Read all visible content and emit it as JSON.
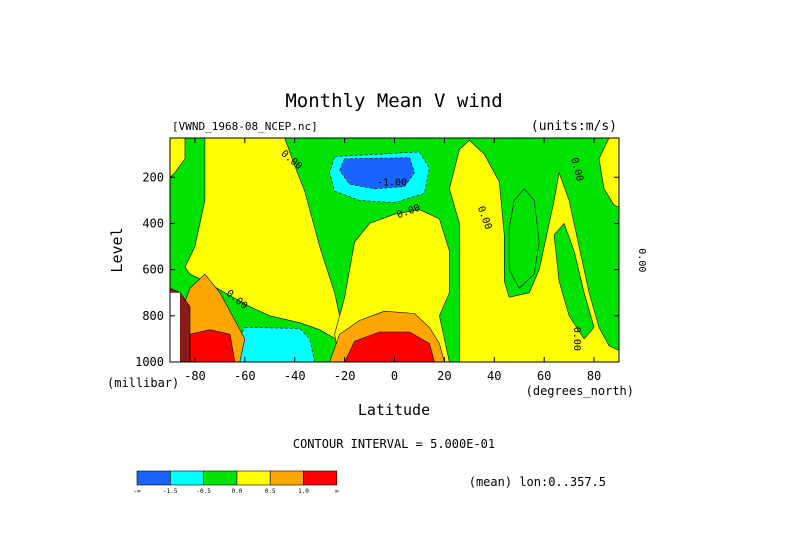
{
  "chart_data": {
    "type": "contour",
    "title": "Monthly Mean V wind",
    "dataset_label": "[VWND_1968-08_NCEP.nc]",
    "units_label": "(units:m/s)",
    "xlabel": "Latitude",
    "x_units": "(degrees_north)",
    "ylabel": "Level",
    "y_units": "(millibar)",
    "xlim": [
      -90,
      90
    ],
    "ylim": [
      1000,
      30
    ],
    "y_inverted": true,
    "x_ticks": [
      {
        "value": -80,
        "label": "-80"
      },
      {
        "value": -60,
        "label": "-60"
      },
      {
        "value": -40,
        "label": "-40"
      },
      {
        "value": -20,
        "label": "-20"
      },
      {
        "value": 0,
        "label": "0"
      },
      {
        "value": 20,
        "label": "20"
      },
      {
        "value": 40,
        "label": "40"
      },
      {
        "value": 60,
        "label": "60"
      },
      {
        "value": 80,
        "label": "80"
      }
    ],
    "y_ticks": [
      {
        "value": 200,
        "label": "200"
      },
      {
        "value": 400,
        "label": "400"
      },
      {
        "value": 600,
        "label": "600"
      },
      {
        "value": 800,
        "label": "800"
      },
      {
        "value": 1000,
        "label": "1000"
      }
    ],
    "contour_interval_text": "CONTOUR INTERVAL = 5.000E-01",
    "mean_text": "(mean) lon:0..357.5",
    "contour_labels": [
      {
        "text": "0.00",
        "x": -42,
        "y": 135,
        "rotate": 40
      },
      {
        "text": "-1.00",
        "x": -1,
        "y": 235,
        "rotate": 0
      },
      {
        "text": "0.00",
        "x": 6,
        "y": 360,
        "rotate": -20
      },
      {
        "text": "0.00",
        "x": 35,
        "y": 380,
        "rotate": 70
      },
      {
        "text": "0.00",
        "x": 72,
        "y": 170,
        "rotate": 75
      },
      {
        "text": "0.00",
        "x": -64,
        "y": 740,
        "rotate": 40
      },
      {
        "text": "0.00",
        "x": 72,
        "y": 900,
        "rotate": 90
      },
      {
        "text": "0.00",
        "x": 98,
        "y": 560,
        "rotate": 90
      }
    ],
    "color_levels": [
      {
        "color": "#1964ff",
        "label": "-∞"
      },
      {
        "color": "#00ffff",
        "label": "-1.5"
      },
      {
        "color": "#00e300",
        "label": "-0.5"
      },
      {
        "color": "#ffff00",
        "label": "0.0"
      },
      {
        "color": "#ffa500",
        "label": "0.5"
      },
      {
        "color": "#ff0000",
        "label": "1.0"
      },
      {
        "color": "#000000",
        "label": "∞"
      }
    ],
    "regions": [
      {
        "name": "green-background",
        "color": "#00e300",
        "points": [
          [
            -90,
            30
          ],
          [
            90,
            30
          ],
          [
            90,
            1000
          ],
          [
            -90,
            1000
          ]
        ]
      },
      {
        "name": "yellow-south-mid",
        "color": "#ffff00",
        "points": [
          [
            -76,
            30
          ],
          [
            -44,
            30
          ],
          [
            -40,
            150
          ],
          [
            -36,
            260
          ],
          [
            -33,
            380
          ],
          [
            -30,
            500
          ],
          [
            -27,
            600
          ],
          [
            -24,
            700
          ],
          [
            -22,
            800
          ],
          [
            -20,
            870
          ],
          [
            -22,
            910
          ],
          [
            -30,
            860
          ],
          [
            -38,
            830
          ],
          [
            -50,
            800
          ],
          [
            -58,
            760
          ],
          [
            -68,
            700
          ],
          [
            -76,
            650
          ],
          [
            -82,
            620
          ],
          [
            -84,
            590
          ],
          [
            -80,
            500
          ],
          [
            -76,
            300
          ],
          [
            -76,
            150
          ]
        ]
      },
      {
        "name": "yellow-equator",
        "color": "#ffff00",
        "points": [
          [
            -20,
            720
          ],
          [
            -16,
            480
          ],
          [
            -10,
            400
          ],
          [
            0,
            360
          ],
          [
            10,
            340
          ],
          [
            18,
            380
          ],
          [
            22,
            520
          ],
          [
            22,
            700
          ],
          [
            18,
            800
          ],
          [
            22,
            1000
          ],
          [
            -22,
            1000
          ],
          [
            -24,
            880
          ]
        ]
      },
      {
        "name": "yellow-north-columns",
        "color": "#ffff00",
        "points": [
          [
            26,
            1000
          ],
          [
            26,
            700
          ],
          [
            26,
            400
          ],
          [
            22,
            250
          ],
          [
            26,
            80
          ],
          [
            30,
            40
          ],
          [
            36,
            100
          ],
          [
            42,
            220
          ],
          [
            44,
            450
          ],
          [
            44,
            650
          ],
          [
            46,
            720
          ],
          [
            54,
            700
          ],
          [
            58,
            600
          ],
          [
            60,
            500
          ],
          [
            64,
            300
          ],
          [
            66,
            180
          ],
          [
            70,
            300
          ],
          [
            74,
            500
          ],
          [
            78,
            700
          ],
          [
            82,
            850
          ],
          [
            86,
            930
          ],
          [
            90,
            950
          ],
          [
            90,
            1000
          ]
        ]
      },
      {
        "name": "yellow-sw-corner",
        "color": "#ffff00",
        "points": [
          [
            -90,
            30
          ],
          [
            -84,
            30
          ],
          [
            -84,
            120
          ],
          [
            -88,
            180
          ],
          [
            -90,
            200
          ]
        ]
      },
      {
        "name": "yellow-north-edge",
        "color": "#ffff00",
        "points": [
          [
            90,
            30
          ],
          [
            86,
            30
          ],
          [
            82,
            120
          ],
          [
            84,
            250
          ],
          [
            88,
            320
          ],
          [
            90,
            330
          ]
        ]
      },
      {
        "name": "green-north-column",
        "color": "#00e300",
        "points": [
          [
            48,
            300
          ],
          [
            52,
            250
          ],
          [
            56,
            300
          ],
          [
            58,
            480
          ],
          [
            56,
            620
          ],
          [
            50,
            680
          ],
          [
            46,
            600
          ],
          [
            46,
            420
          ]
        ]
      },
      {
        "name": "green-north-tongue",
        "color": "#00e300",
        "points": [
          [
            64,
            450
          ],
          [
            68,
            400
          ],
          [
            72,
            520
          ],
          [
            76,
            700
          ],
          [
            80,
            850
          ],
          [
            76,
            900
          ],
          [
            70,
            800
          ],
          [
            66,
            650
          ]
        ]
      },
      {
        "name": "cyan-upper",
        "color": "#00ffff",
        "points": [
          [
            -24,
            110
          ],
          [
            10,
            90
          ],
          [
            14,
            160
          ],
          [
            12,
            270
          ],
          [
            0,
            310
          ],
          [
            -14,
            300
          ],
          [
            -24,
            260
          ],
          [
            -26,
            180
          ]
        ]
      },
      {
        "name": "blue-upper-core",
        "color": "#1964ff",
        "points": [
          [
            -20,
            120
          ],
          [
            6,
            115
          ],
          [
            8,
            180
          ],
          [
            4,
            240
          ],
          [
            -8,
            250
          ],
          [
            -18,
            230
          ],
          [
            -22,
            170
          ]
        ]
      },
      {
        "name": "cyan-lower",
        "color": "#00ffff",
        "points": [
          [
            -60,
            850
          ],
          [
            -38,
            855
          ],
          [
            -34,
            900
          ],
          [
            -32,
            1000
          ],
          [
            -62,
            1000
          ],
          [
            -64,
            930
          ]
        ]
      },
      {
        "name": "orange-south",
        "color": "#ffa500",
        "points": [
          [
            -82,
            680
          ],
          [
            -76,
            620
          ],
          [
            -70,
            700
          ],
          [
            -64,
            820
          ],
          [
            -60,
            900
          ],
          [
            -62,
            1000
          ],
          [
            -86,
            1000
          ],
          [
            -86,
            800
          ]
        ]
      },
      {
        "name": "orange-equator",
        "color": "#ffa500",
        "points": [
          [
            -26,
            1000
          ],
          [
            -22,
            880
          ],
          [
            -14,
            820
          ],
          [
            -4,
            780
          ],
          [
            8,
            790
          ],
          [
            14,
            850
          ],
          [
            18,
            920
          ],
          [
            20,
            1000
          ]
        ]
      },
      {
        "name": "red-south",
        "color": "#ff0000",
        "points": [
          [
            -82,
            880
          ],
          [
            -74,
            860
          ],
          [
            -66,
            880
          ],
          [
            -64,
            1000
          ],
          [
            -84,
            1000
          ]
        ]
      },
      {
        "name": "red-equator",
        "color": "#ff0000",
        "points": [
          [
            -20,
            1000
          ],
          [
            -16,
            910
          ],
          [
            -6,
            870
          ],
          [
            6,
            870
          ],
          [
            14,
            920
          ],
          [
            16,
            1000
          ]
        ]
      },
      {
        "name": "dark-red-south",
        "color": "#8b1a1a",
        "points": [
          [
            -90,
            680
          ],
          [
            -86,
            700
          ],
          [
            -82,
            760
          ],
          [
            -82,
            1000
          ],
          [
            -90,
            1000
          ]
        ]
      },
      {
        "name": "white-missing",
        "color": "#ffffff",
        "points": [
          [
            -90,
            700
          ],
          [
            -86,
            700
          ],
          [
            -86,
            1000
          ],
          [
            -90,
            1000
          ]
        ]
      }
    ]
  }
}
